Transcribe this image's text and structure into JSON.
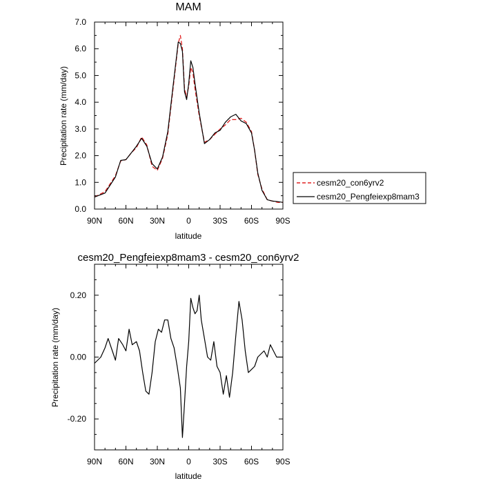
{
  "chart_data": [
    {
      "type": "line",
      "title": "MAM",
      "xlabel": "latitude",
      "ylabel": "Precipitation rate (mm/day)",
      "xlim": [
        90,
        -90
      ],
      "ylim": [
        0,
        7
      ],
      "x_ticks": [
        90,
        60,
        30,
        0,
        -30,
        -60,
        -90
      ],
      "x_tick_labels": [
        "90N",
        "60N",
        "30N",
        "0",
        "30S",
        "60S",
        "90S"
      ],
      "y_ticks": [
        0,
        1,
        2,
        3,
        4,
        5,
        6,
        7
      ],
      "y_tick_labels": [
        "0.0",
        "1.0",
        "2.0",
        "3.0",
        "4.0",
        "5.0",
        "6.0",
        "7.0"
      ],
      "legend_position": "right",
      "legend": [
        {
          "name": "cesm20_con6yrv2",
          "color": "#e02020",
          "dash": "dashed"
        },
        {
          "name": "cesm20_Pengfeiexp8mam3",
          "color": "#000000",
          "dash": "solid"
        }
      ],
      "series": [
        {
          "name": "cesm20_con6yrv2",
          "color": "#e02020",
          "dash": "dashed",
          "x": [
            90,
            80,
            70,
            65,
            60,
            55,
            50,
            45,
            40,
            35,
            30,
            25,
            20,
            15,
            10,
            8,
            6,
            4,
            2,
            0,
            -2,
            -4,
            -6,
            -10,
            -15,
            -20,
            -25,
            -30,
            -35,
            -40,
            -45,
            -50,
            -55,
            -60,
            -63,
            -66,
            -70,
            -75,
            -80,
            -85,
            -90
          ],
          "values": [
            0.45,
            0.65,
            1.25,
            1.8,
            1.85,
            2.1,
            2.3,
            2.7,
            2.4,
            1.6,
            1.45,
            1.9,
            2.8,
            4.5,
            6.2,
            6.5,
            6.0,
            4.5,
            4.2,
            4.6,
            5.3,
            5.1,
            4.5,
            3.5,
            2.5,
            2.6,
            2.8,
            3.0,
            3.15,
            3.35,
            3.35,
            3.4,
            3.25,
            2.9,
            2.2,
            1.3,
            0.75,
            0.35,
            0.3,
            0.25,
            0.25
          ]
        },
        {
          "name": "cesm20_Pengfeiexp8mam3",
          "color": "#000000",
          "dash": "solid",
          "x": [
            90,
            80,
            70,
            65,
            60,
            55,
            50,
            45,
            40,
            35,
            30,
            25,
            20,
            15,
            10,
            8,
            6,
            4,
            2,
            0,
            -2,
            -4,
            -6,
            -10,
            -15,
            -20,
            -25,
            -30,
            -35,
            -40,
            -45,
            -50,
            -55,
            -60,
            -63,
            -66,
            -70,
            -75,
            -80,
            -85,
            -90
          ],
          "values": [
            0.45,
            0.6,
            1.2,
            1.82,
            1.85,
            2.1,
            2.35,
            2.65,
            2.35,
            1.7,
            1.5,
            1.95,
            2.9,
            4.6,
            6.25,
            6.2,
            5.9,
            4.4,
            4.1,
            4.7,
            5.55,
            5.3,
            4.7,
            3.6,
            2.45,
            2.6,
            2.85,
            2.95,
            3.25,
            3.45,
            3.55,
            3.3,
            3.2,
            2.85,
            2.2,
            1.35,
            0.7,
            0.35,
            0.3,
            0.28,
            0.25
          ]
        }
      ]
    },
    {
      "type": "line",
      "title": "cesm20_Pengfeiexp8mam3 - cesm20_con6yrv2",
      "xlabel": "latitude",
      "ylabel": "Precipitation rate (mm/day)",
      "xlim": [
        90,
        -90
      ],
      "ylim": [
        -0.3,
        0.3
      ],
      "x_ticks": [
        90,
        60,
        30,
        0,
        -30,
        -60,
        -90
      ],
      "x_tick_labels": [
        "90N",
        "60N",
        "30N",
        "0",
        "30S",
        "60S",
        "90S"
      ],
      "y_ticks": [
        -0.2,
        0,
        0.2
      ],
      "y_tick_labels": [
        "-0.20",
        "0.00",
        "0.20"
      ],
      "series": [
        {
          "name": "",
          "color": "#000000",
          "dash": "solid",
          "x": [
            90,
            87,
            84,
            80,
            77,
            73,
            70,
            67,
            63,
            60,
            57,
            54,
            50,
            47,
            44,
            41,
            38,
            35,
            32,
            29,
            26,
            23,
            20,
            17,
            14,
            11,
            8,
            6,
            4,
            2,
            0,
            -2,
            -4,
            -6,
            -8,
            -10,
            -12,
            -15,
            -18,
            -21,
            -24,
            -27,
            -30,
            -33,
            -36,
            -39,
            -42,
            -45,
            -48,
            -51,
            -54,
            -57,
            -60,
            -63,
            -66,
            -69,
            -72,
            -75,
            -78,
            -81,
            -84,
            -87,
            -90
          ],
          "values": [
            -0.02,
            -0.01,
            0.0,
            0.03,
            0.06,
            0.02,
            -0.01,
            0.06,
            0.04,
            0.02,
            0.09,
            0.04,
            0.05,
            0.02,
            -0.05,
            -0.11,
            -0.12,
            -0.05,
            0.05,
            0.09,
            0.08,
            0.12,
            0.12,
            0.06,
            0.03,
            -0.03,
            -0.1,
            -0.26,
            -0.15,
            -0.03,
            0.05,
            0.19,
            0.16,
            0.14,
            0.15,
            0.2,
            0.12,
            0.06,
            0.0,
            -0.01,
            0.05,
            -0.03,
            -0.05,
            -0.12,
            -0.06,
            -0.13,
            -0.05,
            0.07,
            0.18,
            0.12,
            0.02,
            -0.05,
            -0.04,
            -0.03,
            0.0,
            0.01,
            0.02,
            0.0,
            0.04,
            0.02,
            0.0,
            0.0,
            0.0
          ]
        }
      ]
    }
  ]
}
